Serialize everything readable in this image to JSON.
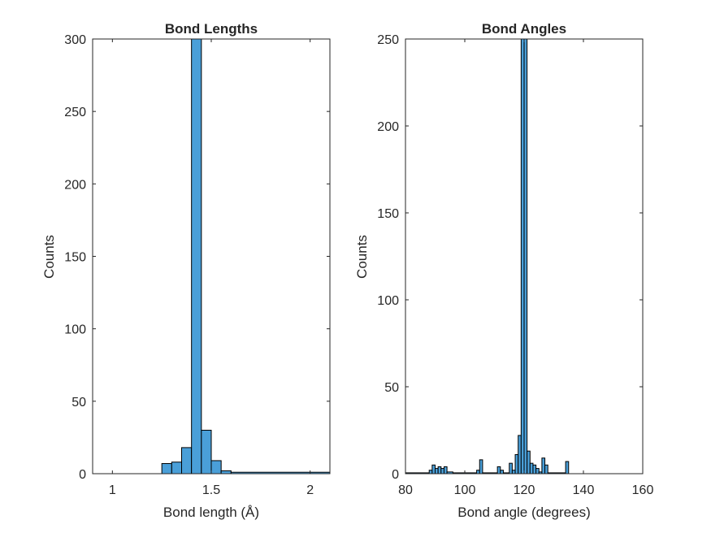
{
  "chart_data": [
    {
      "type": "bar",
      "title": "Bond Lengths",
      "xlabel": "Bond length (Å)",
      "ylabel": "Counts",
      "xlim": [
        0.9,
        2.1
      ],
      "ylim": [
        0,
        300
      ],
      "xticks": [
        {
          "value": 1,
          "label": "1"
        },
        {
          "value": 1.5,
          "label": "1.5"
        },
        {
          "value": 2,
          "label": "2"
        }
      ],
      "yticks": [
        {
          "value": 0,
          "label": "0"
        },
        {
          "value": 50,
          "label": "50"
        },
        {
          "value": 100,
          "label": "100"
        },
        {
          "value": 150,
          "label": "150"
        },
        {
          "value": 200,
          "label": "200"
        },
        {
          "value": 250,
          "label": "250"
        },
        {
          "value": 300,
          "label": "300"
        }
      ],
      "bins": [
        {
          "x0": 1.25,
          "x1": 1.3,
          "count": 7
        },
        {
          "x0": 1.3,
          "x1": 1.35,
          "count": 8
        },
        {
          "x0": 1.35,
          "x1": 1.4,
          "count": 18
        },
        {
          "x0": 1.4,
          "x1": 1.45,
          "count": 300
        },
        {
          "x0": 1.45,
          "x1": 1.5,
          "count": 30
        },
        {
          "x0": 1.5,
          "x1": 1.55,
          "count": 9
        },
        {
          "x0": 1.55,
          "x1": 1.6,
          "count": 2
        },
        {
          "x0": 1.6,
          "x1": 2.1,
          "count": 1
        }
      ],
      "bar_color": "#4a9fd8",
      "edge_color": "#000000",
      "grid": false
    },
    {
      "type": "bar",
      "title": "Bond Angles",
      "xlabel": "Bond angle (degrees)",
      "ylabel": "Counts",
      "xlim": [
        80,
        160
      ],
      "ylim": [
        0,
        250
      ],
      "xticks": [
        {
          "value": 80,
          "label": "80"
        },
        {
          "value": 100,
          "label": "100"
        },
        {
          "value": 120,
          "label": "120"
        },
        {
          "value": 140,
          "label": "140"
        },
        {
          "value": 160,
          "label": "160"
        }
      ],
      "yticks": [
        {
          "value": 0,
          "label": "0"
        },
        {
          "value": 50,
          "label": "50"
        },
        {
          "value": 100,
          "label": "100"
        },
        {
          "value": 150,
          "label": "150"
        },
        {
          "value": 200,
          "label": "200"
        },
        {
          "value": 250,
          "label": "250"
        }
      ],
      "bins": [
        {
          "x0": 80,
          "x1": 88,
          "count": 0.5
        },
        {
          "x0": 88,
          "x1": 89,
          "count": 2
        },
        {
          "x0": 89,
          "x1": 90,
          "count": 5
        },
        {
          "x0": 90,
          "x1": 91,
          "count": 3
        },
        {
          "x0": 91,
          "x1": 92,
          "count": 4
        },
        {
          "x0": 92,
          "x1": 93,
          "count": 3
        },
        {
          "x0": 93,
          "x1": 94,
          "count": 4
        },
        {
          "x0": 94,
          "x1": 96,
          "count": 1
        },
        {
          "x0": 96,
          "x1": 104,
          "count": 0.5
        },
        {
          "x0": 104,
          "x1": 105,
          "count": 2
        },
        {
          "x0": 105,
          "x1": 106,
          "count": 8
        },
        {
          "x0": 106,
          "x1": 111,
          "count": 0.5
        },
        {
          "x0": 111,
          "x1": 112,
          "count": 4
        },
        {
          "x0": 112,
          "x1": 113,
          "count": 2
        },
        {
          "x0": 113,
          "x1": 115,
          "count": 0.5
        },
        {
          "x0": 115,
          "x1": 116,
          "count": 6
        },
        {
          "x0": 116,
          "x1": 117,
          "count": 2
        },
        {
          "x0": 117,
          "x1": 118,
          "count": 11
        },
        {
          "x0": 118,
          "x1": 119,
          "count": 22
        },
        {
          "x0": 119,
          "x1": 120,
          "count": 250
        },
        {
          "x0": 120,
          "x1": 121,
          "count": 250
        },
        {
          "x0": 121,
          "x1": 122,
          "count": 13
        },
        {
          "x0": 122,
          "x1": 123,
          "count": 6
        },
        {
          "x0": 123,
          "x1": 124,
          "count": 5
        },
        {
          "x0": 124,
          "x1": 125,
          "count": 3
        },
        {
          "x0": 125,
          "x1": 126,
          "count": 1
        },
        {
          "x0": 126,
          "x1": 127,
          "count": 9
        },
        {
          "x0": 127,
          "x1": 128,
          "count": 5
        },
        {
          "x0": 128,
          "x1": 134,
          "count": 0.5
        },
        {
          "x0": 134,
          "x1": 135,
          "count": 7
        }
      ],
      "bar_color": "#4a9fd8",
      "edge_color": "#000000",
      "grid": false
    }
  ]
}
